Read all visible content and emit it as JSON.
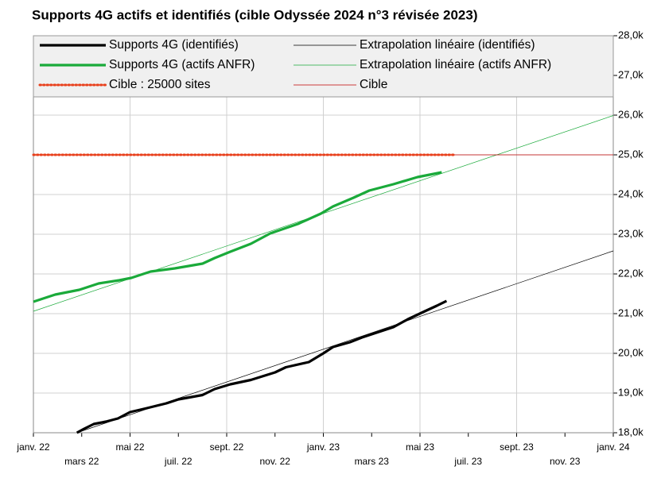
{
  "chart_data": {
    "type": "line",
    "title": "Supports 4G actifs et identifiés (cible Odyssée 2024 n°3 révisée 2023)",
    "xlim": [
      0,
      24
    ],
    "xticks": [
      {
        "value": 0,
        "label": "janv. 22"
      },
      {
        "value": 4,
        "label": "mai 22"
      },
      {
        "value": 8,
        "label": "sept. 22"
      },
      {
        "value": 12,
        "label": "janv. 23"
      },
      {
        "value": 16,
        "label": "mai 23"
      },
      {
        "value": 20,
        "label": "sept. 23"
      },
      {
        "value": 24,
        "label": "janv. 24"
      }
    ],
    "xticks_minor": [
      {
        "value": 2,
        "label": "mars 22"
      },
      {
        "value": 6,
        "label": "juil. 22"
      },
      {
        "value": 10,
        "label": "nov. 22"
      },
      {
        "value": 14,
        "label": "mars 23"
      },
      {
        "value": 18,
        "label": "juil. 23"
      },
      {
        "value": 22,
        "label": "nov. 23"
      }
    ],
    "ylim": [
      18000,
      28000
    ],
    "yticks": [
      {
        "value": 18000,
        "label": "18,0k"
      },
      {
        "value": 19000,
        "label": "19,0k"
      },
      {
        "value": 20000,
        "label": "20,0k"
      },
      {
        "value": 21000,
        "label": "21,0k"
      },
      {
        "value": 22000,
        "label": "22,0k"
      },
      {
        "value": 23000,
        "label": "23,0k"
      },
      {
        "value": 24000,
        "label": "24,0k"
      },
      {
        "value": 25000,
        "label": "25,0k"
      },
      {
        "value": 26000,
        "label": "26,0k"
      },
      {
        "value": 27000,
        "label": "27,0k"
      },
      {
        "value": 28000,
        "label": "28,0k"
      }
    ],
    "grid": true,
    "legend": "top",
    "series": [
      {
        "name": "Supports 4G (identifiés)",
        "color": "#000000",
        "line_style": "thick",
        "x": [
          1.8,
          2.1,
          2.5,
          3.0,
          3.5,
          4.0,
          4.7,
          5.5,
          6.0,
          7.0,
          7.5,
          8.15,
          9.0,
          10.0,
          10.45,
          11.4,
          12.0,
          12.4,
          13.1,
          13.6,
          14.2,
          14.9,
          15.5,
          16.2,
          16.7,
          17.1
        ],
        "values": [
          18000,
          18100,
          18220,
          18280,
          18360,
          18520,
          18620,
          18740,
          18840,
          18950,
          19100,
          19220,
          19330,
          19520,
          19650,
          19780,
          20000,
          20160,
          20280,
          20400,
          20520,
          20660,
          20860,
          21060,
          21200,
          21320
        ]
      },
      {
        "name": "Extrapolation linéaire (identifiés)",
        "color": "#000000",
        "line_style": "thin",
        "x": [
          1.8,
          24
        ],
        "values": [
          18000,
          22580
        ]
      },
      {
        "name": "Supports 4G (actifs ANFR)",
        "color": "#1aaa3a",
        "line_style": "thick",
        "x": [
          0,
          0.9,
          1.9,
          2.7,
          3.55,
          4.05,
          4.85,
          5.85,
          7.0,
          7.5,
          8.15,
          9.0,
          9.8,
          10.95,
          11.9,
          12.4,
          13.25,
          13.9,
          14.9,
          15.9,
          16.9
        ],
        "values": [
          21300,
          21480,
          21600,
          21760,
          21840,
          21900,
          22060,
          22140,
          22260,
          22400,
          22560,
          22760,
          23020,
          23260,
          23520,
          23700,
          23920,
          24100,
          24260,
          24440,
          24560
        ]
      },
      {
        "name": "Extrapolation linéaire (actifs ANFR)",
        "color": "#1aaa3a",
        "line_style": "thin",
        "x": [
          0,
          24
        ],
        "values": [
          21060,
          25990
        ]
      },
      {
        "name": "Cible : 25000 sites",
        "color": "#e8401c",
        "line_style": "dotted",
        "x": [
          0,
          17.4
        ],
        "values": [
          25000,
          25000
        ]
      },
      {
        "name": "Cible",
        "color": "#c00000",
        "line_style": "thin",
        "x": [
          0,
          24
        ],
        "values": [
          25000,
          25000
        ]
      }
    ]
  }
}
